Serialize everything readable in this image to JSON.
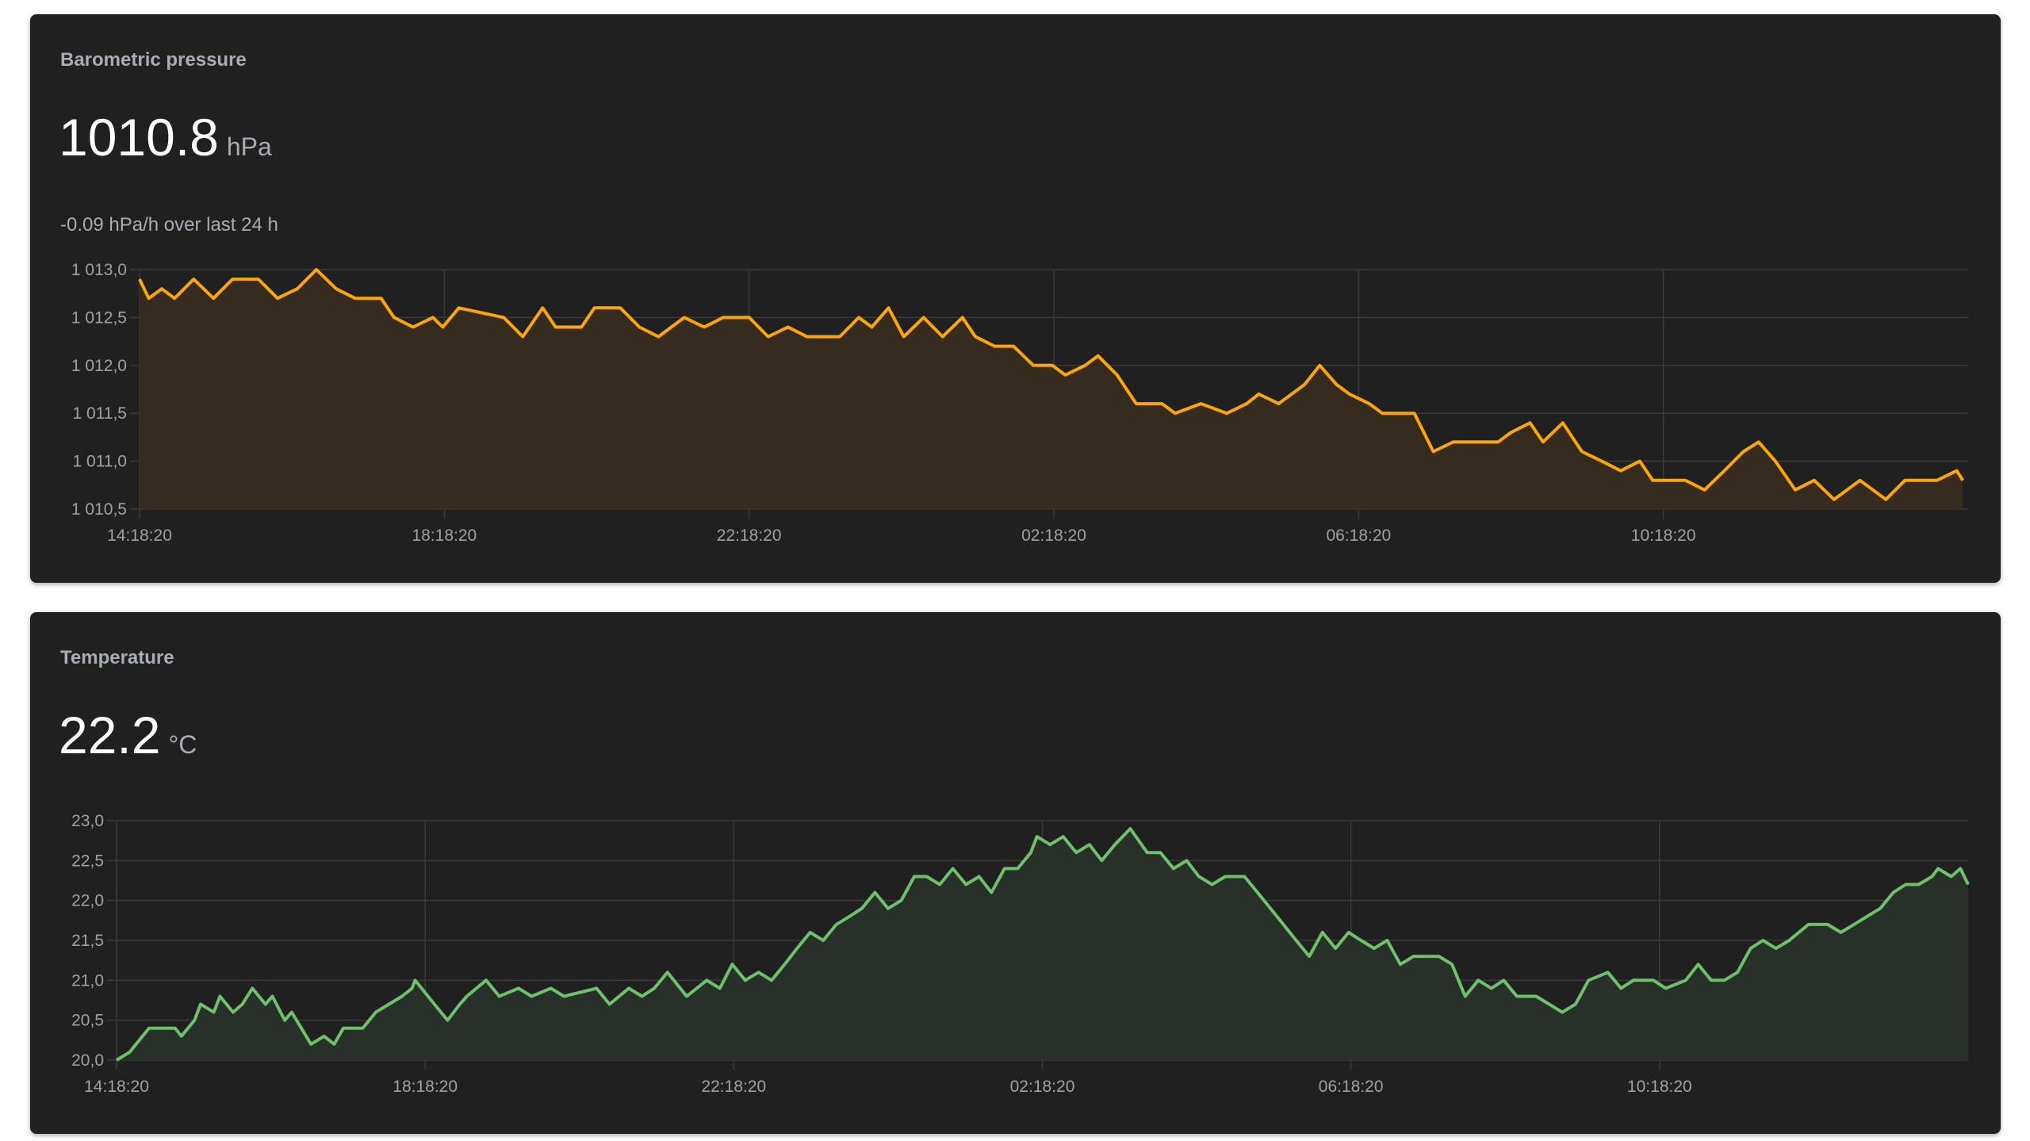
{
  "cards": [
    {
      "title": "Barometric pressure",
      "value": "1010.8",
      "unit": "hPa",
      "subtitle": "-0.09 hPa/h over last 24 h"
    },
    {
      "title": "Temperature",
      "value": "22.2",
      "unit": "°C"
    }
  ],
  "colors": {
    "pressure_line": "#ffa600",
    "pressure_fill": "#352b1e",
    "temperature_line": "#6cc16a",
    "temperature_fill": "#29302a",
    "grid": "#3a3a3a"
  },
  "chart_data": [
    {
      "type": "area",
      "title": "Barometric pressure",
      "xlabel": "",
      "ylabel": "hPa",
      "xlim": [
        0,
        24
      ],
      "ylim": [
        1010.5,
        1013.0
      ],
      "x_ticks": [
        0,
        4,
        8,
        12,
        16,
        20
      ],
      "x_tick_labels": [
        "14:18:20",
        "18:18:20",
        "22:18:20",
        "02:18:20",
        "06:18:20",
        "10:18:20"
      ],
      "y_ticks": [
        1010.5,
        1011.0,
        1011.5,
        1012.0,
        1012.5,
        1013.0
      ],
      "y_tick_labels": [
        "1 010,5",
        "1 011,0",
        "1 011,5",
        "1 012,0",
        "1 012,5",
        "1 013,0"
      ],
      "grid": true,
      "points": [
        [
          0,
          1012.9
        ],
        [
          0.12,
          1012.7
        ],
        [
          0.29,
          1012.8
        ],
        [
          0.46,
          1012.7
        ],
        [
          0.71,
          1012.9
        ],
        [
          0.97,
          1012.7
        ],
        [
          1.22,
          1012.9
        ],
        [
          1.56,
          1012.9
        ],
        [
          1.81,
          1012.7
        ],
        [
          2.07,
          1012.8
        ],
        [
          2.32,
          1013.0
        ],
        [
          2.58,
          1012.8
        ],
        [
          2.83,
          1012.7
        ],
        [
          3.17,
          1012.7
        ],
        [
          3.34,
          1012.5
        ],
        [
          3.59,
          1012.4
        ],
        [
          3.85,
          1012.5
        ],
        [
          3.98,
          1012.4
        ],
        [
          4.19,
          1012.6
        ],
        [
          4.78,
          1012.5
        ],
        [
          5.03,
          1012.3
        ],
        [
          5.29,
          1012.6
        ],
        [
          5.46,
          1012.4
        ],
        [
          5.8,
          1012.4
        ],
        [
          5.97,
          1012.6
        ],
        [
          6.31,
          1012.6
        ],
        [
          6.56,
          1012.4
        ],
        [
          6.81,
          1012.3
        ],
        [
          7.15,
          1012.5
        ],
        [
          7.41,
          1012.4
        ],
        [
          7.66,
          1012.5
        ],
        [
          8.0,
          1012.5
        ],
        [
          8.25,
          1012.3
        ],
        [
          8.51,
          1012.4
        ],
        [
          8.76,
          1012.3
        ],
        [
          9.19,
          1012.3
        ],
        [
          9.44,
          1012.5
        ],
        [
          9.61,
          1012.4
        ],
        [
          9.83,
          1012.6
        ],
        [
          10.03,
          1012.3
        ],
        [
          10.29,
          1012.5
        ],
        [
          10.54,
          1012.3
        ],
        [
          10.8,
          1012.5
        ],
        [
          10.97,
          1012.3
        ],
        [
          11.22,
          1012.2
        ],
        [
          11.47,
          1012.2
        ],
        [
          11.73,
          1012.0
        ],
        [
          11.98,
          1012.0
        ],
        [
          12.15,
          1011.9
        ],
        [
          12.41,
          1012.0
        ],
        [
          12.58,
          1012.1
        ],
        [
          12.83,
          1011.9
        ],
        [
          13.08,
          1011.6
        ],
        [
          13.42,
          1011.6
        ],
        [
          13.59,
          1011.5
        ],
        [
          13.93,
          1011.6
        ],
        [
          14.27,
          1011.5
        ],
        [
          14.53,
          1011.6
        ],
        [
          14.69,
          1011.7
        ],
        [
          14.95,
          1011.6
        ],
        [
          15.12,
          1011.7
        ],
        [
          15.29,
          1011.8
        ],
        [
          15.49,
          1012.0
        ],
        [
          15.71,
          1011.8
        ],
        [
          15.88,
          1011.7
        ],
        [
          16.14,
          1011.6
        ],
        [
          16.31,
          1011.5
        ],
        [
          16.73,
          1011.5
        ],
        [
          16.98,
          1011.1
        ],
        [
          17.24,
          1011.2
        ],
        [
          17.83,
          1011.2
        ],
        [
          18.0,
          1011.3
        ],
        [
          18.25,
          1011.4
        ],
        [
          18.42,
          1011.2
        ],
        [
          18.68,
          1011.4
        ],
        [
          18.93,
          1011.1
        ],
        [
          19.19,
          1011.0
        ],
        [
          19.44,
          1010.9
        ],
        [
          19.69,
          1011.0
        ],
        [
          19.86,
          1010.8
        ],
        [
          20.29,
          1010.8
        ],
        [
          20.54,
          1010.7
        ],
        [
          20.8,
          1010.9
        ],
        [
          21.05,
          1011.1
        ],
        [
          21.25,
          1011.2
        ],
        [
          21.47,
          1011.0
        ],
        [
          21.73,
          1010.7
        ],
        [
          21.98,
          1010.8
        ],
        [
          22.24,
          1010.6
        ],
        [
          22.58,
          1010.8
        ],
        [
          22.92,
          1010.6
        ],
        [
          23.17,
          1010.8
        ],
        [
          23.59,
          1010.8
        ],
        [
          23.85,
          1010.9
        ],
        [
          23.93,
          1010.8
        ]
      ]
    },
    {
      "type": "area",
      "title": "Temperature",
      "xlabel": "",
      "ylabel": "°C",
      "xlim": [
        0,
        24
      ],
      "ylim": [
        20.0,
        23.0
      ],
      "x_ticks": [
        0,
        4,
        8,
        12,
        16,
        20
      ],
      "x_tick_labels": [
        "14:18:20",
        "18:18:20",
        "22:18:20",
        "02:18:20",
        "06:18:20",
        "10:18:20"
      ],
      "y_ticks": [
        20.0,
        20.5,
        21.0,
        21.5,
        22.0,
        22.5,
        23.0
      ],
      "y_tick_labels": [
        "20,0",
        "20,5",
        "21,0",
        "21,5",
        "22,0",
        "22,5",
        "23,0"
      ],
      "grid": true,
      "points": [
        [
          0,
          20.0
        ],
        [
          0.17,
          20.1
        ],
        [
          0.42,
          20.4
        ],
        [
          0.76,
          20.4
        ],
        [
          0.84,
          20.3
        ],
        [
          1.01,
          20.5
        ],
        [
          1.09,
          20.7
        ],
        [
          1.26,
          20.6
        ],
        [
          1.34,
          20.8
        ],
        [
          1.51,
          20.6
        ],
        [
          1.63,
          20.7
        ],
        [
          1.76,
          20.9
        ],
        [
          1.93,
          20.7
        ],
        [
          2.02,
          20.8
        ],
        [
          2.18,
          20.5
        ],
        [
          2.27,
          20.6
        ],
        [
          2.52,
          20.2
        ],
        [
          2.69,
          20.3
        ],
        [
          2.82,
          20.2
        ],
        [
          2.94,
          20.4
        ],
        [
          3.19,
          20.4
        ],
        [
          3.36,
          20.6
        ],
        [
          3.53,
          20.7
        ],
        [
          3.7,
          20.8
        ],
        [
          3.83,
          20.9
        ],
        [
          3.87,
          21.0
        ],
        [
          4.12,
          20.7
        ],
        [
          4.29,
          20.5
        ],
        [
          4.45,
          20.7
        ],
        [
          4.54,
          20.8
        ],
        [
          4.79,
          21.0
        ],
        [
          4.96,
          20.8
        ],
        [
          5.21,
          20.9
        ],
        [
          5.38,
          20.8
        ],
        [
          5.63,
          20.9
        ],
        [
          5.8,
          20.8
        ],
        [
          6.22,
          20.9
        ],
        [
          6.39,
          20.7
        ],
        [
          6.64,
          20.9
        ],
        [
          6.81,
          20.8
        ],
        [
          6.97,
          20.9
        ],
        [
          7.14,
          21.1
        ],
        [
          7.39,
          20.8
        ],
        [
          7.65,
          21.0
        ],
        [
          7.82,
          20.9
        ],
        [
          7.98,
          21.2
        ],
        [
          8.15,
          21.0
        ],
        [
          8.32,
          21.1
        ],
        [
          8.49,
          21.0
        ],
        [
          8.66,
          21.2
        ],
        [
          8.82,
          21.4
        ],
        [
          8.99,
          21.6
        ],
        [
          9.16,
          21.5
        ],
        [
          9.33,
          21.7
        ],
        [
          9.5,
          21.8
        ],
        [
          9.66,
          21.9
        ],
        [
          9.83,
          22.1
        ],
        [
          10.0,
          21.9
        ],
        [
          10.17,
          22.0
        ],
        [
          10.34,
          22.3
        ],
        [
          10.5,
          22.3
        ],
        [
          10.67,
          22.2
        ],
        [
          10.84,
          22.4
        ],
        [
          11.01,
          22.2
        ],
        [
          11.18,
          22.3
        ],
        [
          11.34,
          22.1
        ],
        [
          11.51,
          22.4
        ],
        [
          11.68,
          22.4
        ],
        [
          11.85,
          22.6
        ],
        [
          11.93,
          22.8
        ],
        [
          12.1,
          22.7
        ],
        [
          12.27,
          22.8
        ],
        [
          12.44,
          22.6
        ],
        [
          12.61,
          22.7
        ],
        [
          12.77,
          22.5
        ],
        [
          12.94,
          22.7
        ],
        [
          13.14,
          22.9
        ],
        [
          13.36,
          22.6
        ],
        [
          13.53,
          22.6
        ],
        [
          13.7,
          22.4
        ],
        [
          13.87,
          22.5
        ],
        [
          14.03,
          22.3
        ],
        [
          14.2,
          22.2
        ],
        [
          14.37,
          22.3
        ],
        [
          14.62,
          22.3
        ],
        [
          14.79,
          22.1
        ],
        [
          15.04,
          21.8
        ],
        [
          15.29,
          21.5
        ],
        [
          15.46,
          21.3
        ],
        [
          15.63,
          21.6
        ],
        [
          15.8,
          21.4
        ],
        [
          15.97,
          21.6
        ],
        [
          16.13,
          21.5
        ],
        [
          16.3,
          21.4
        ],
        [
          16.47,
          21.5
        ],
        [
          16.64,
          21.2
        ],
        [
          16.81,
          21.3
        ],
        [
          17.14,
          21.3
        ],
        [
          17.31,
          21.2
        ],
        [
          17.48,
          20.8
        ],
        [
          17.65,
          21.0
        ],
        [
          17.82,
          20.9
        ],
        [
          17.98,
          21.0
        ],
        [
          18.15,
          20.8
        ],
        [
          18.4,
          20.8
        ],
        [
          18.57,
          20.7
        ],
        [
          18.74,
          20.6
        ],
        [
          18.91,
          20.7
        ],
        [
          19.08,
          21.0
        ],
        [
          19.33,
          21.1
        ],
        [
          19.5,
          20.9
        ],
        [
          19.66,
          21.0
        ],
        [
          19.92,
          21.0
        ],
        [
          20.08,
          20.9
        ],
        [
          20.34,
          21.0
        ],
        [
          20.5,
          21.2
        ],
        [
          20.67,
          21.0
        ],
        [
          20.84,
          21.0
        ],
        [
          21.01,
          21.1
        ],
        [
          21.18,
          21.4
        ],
        [
          21.34,
          21.5
        ],
        [
          21.51,
          21.4
        ],
        [
          21.68,
          21.5
        ],
        [
          21.93,
          21.7
        ],
        [
          22.18,
          21.7
        ],
        [
          22.35,
          21.6
        ],
        [
          22.52,
          21.7
        ],
        [
          22.69,
          21.8
        ],
        [
          22.86,
          21.9
        ],
        [
          23.03,
          22.1
        ],
        [
          23.19,
          22.2
        ],
        [
          23.36,
          22.2
        ],
        [
          23.53,
          22.3
        ],
        [
          23.61,
          22.4
        ],
        [
          23.78,
          22.3
        ],
        [
          23.9,
          22.4
        ],
        [
          24.0,
          22.2
        ]
      ]
    }
  ]
}
